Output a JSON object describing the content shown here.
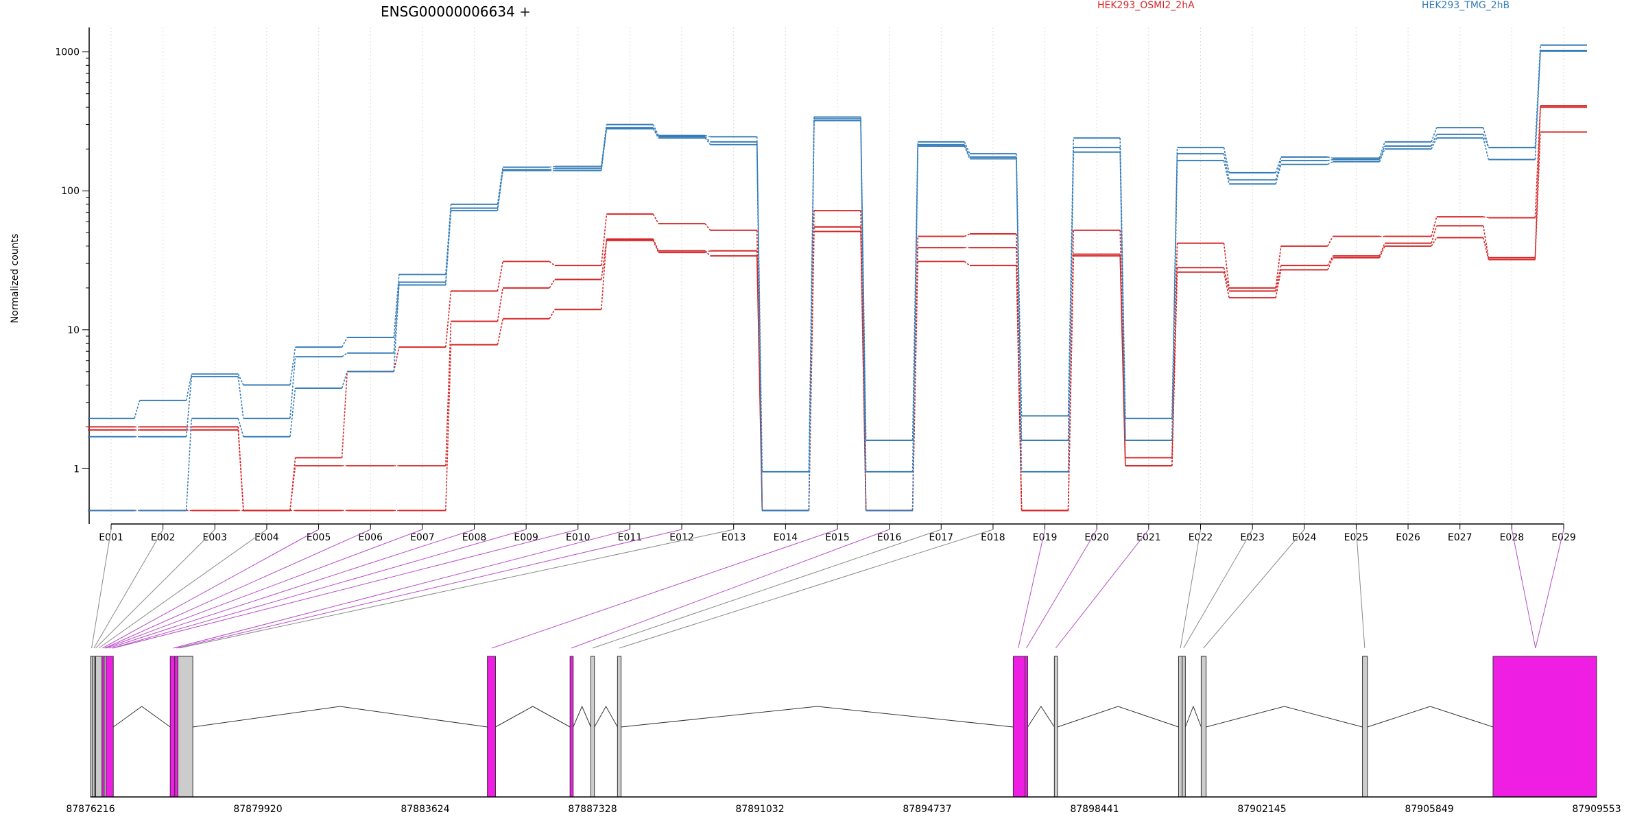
{
  "title": "ENSG00000006634 +",
  "ylabel": "Normalized counts",
  "legend": [
    {
      "name": "HEK293_OSMI2_2hA",
      "color": "#d62728"
    },
    {
      "name": "HEK293_TMG_2hB",
      "color": "#377eb8"
    }
  ],
  "colors": {
    "red_series": "#d62728",
    "blue_series": "#377eb8",
    "highlight_exon": "#ee1fe2",
    "plain_exon": "#cccccc",
    "connector_plain": "#888888",
    "connector_highlight": "#b84cc7"
  },
  "chart_data": {
    "type": "line",
    "scale": "log",
    "ylim": [
      0.4,
      1500
    ],
    "y_ticks": [
      "1",
      "10",
      "100",
      "1000"
    ],
    "grid": "vertical dotted lines at each exon bin",
    "legend_placement": "top",
    "categories": [
      "E001",
      "E002",
      "E003",
      "E004",
      "E005",
      "E006",
      "E007",
      "E008",
      "E009",
      "E010",
      "E011",
      "E012",
      "E013",
      "E014",
      "E015",
      "E016",
      "E017",
      "E018",
      "E019",
      "E020",
      "E021",
      "E022",
      "E023",
      "E024",
      "E025",
      "E026",
      "E027",
      "E028",
      "E029"
    ],
    "series": [
      {
        "name": "HEK293_OSMI2_2hA",
        "color": "#d62728",
        "values": [
          2.0,
          2.0,
          2.0,
          0.5,
          1.2,
          5.0,
          7.5,
          19,
          31,
          29,
          68,
          58,
          52,
          0.5,
          72,
          0.5,
          47,
          49,
          0.5,
          52,
          1.2,
          42,
          20,
          40,
          47,
          47,
          65,
          64,
          410
        ]
      },
      {
        "name": "HEK293_OSMI2_2hA",
        "color": "#d62728",
        "values": [
          1.9,
          1.9,
          1.9,
          0.5,
          1.05,
          1.05,
          1.05,
          11.5,
          20,
          23,
          44,
          36,
          37,
          0.5,
          55,
          0.5,
          39,
          39,
          0.5,
          35,
          1.05,
          28,
          19,
          29,
          34,
          42,
          56,
          33,
          400
        ]
      },
      {
        "name": "HEK293_OSMI2_2hA",
        "color": "#d62728",
        "values": [
          0.5,
          0.5,
          0.5,
          0.5,
          0.5,
          0.5,
          0.5,
          7.8,
          12,
          14,
          45,
          37,
          34,
          0.5,
          51,
          0.5,
          31,
          29,
          0.5,
          34,
          1.05,
          26,
          17,
          27,
          33,
          40,
          46,
          32,
          265
        ]
      },
      {
        "name": "HEK293_TMG_2hB",
        "color": "#377eb8",
        "values": [
          2.3,
          3.1,
          4.8,
          4.0,
          7.5,
          8.8,
          25,
          80,
          148,
          150,
          300,
          250,
          245,
          0.95,
          340,
          1.6,
          225,
          185,
          2.4,
          240,
          2.3,
          205,
          135,
          175,
          172,
          225,
          285,
          205,
          1120
        ]
      },
      {
        "name": "HEK293_TMG_2hB",
        "color": "#377eb8",
        "values": [
          1.7,
          1.7,
          4.6,
          2.3,
          6.4,
          6.8,
          22,
          75,
          142,
          145,
          285,
          245,
          225,
          0.5,
          330,
          0.95,
          215,
          175,
          1.6,
          205,
          1.6,
          185,
          120,
          165,
          168,
          210,
          255,
          205,
          1020
        ]
      },
      {
        "name": "HEK293_TMG_2hB",
        "color": "#377eb8",
        "values": [
          0.5,
          0.5,
          2.3,
          1.7,
          3.8,
          5.0,
          21,
          72,
          140,
          140,
          280,
          240,
          215,
          0.5,
          320,
          0.5,
          210,
          170,
          0.95,
          190,
          1.6,
          165,
          112,
          155,
          162,
          200,
          240,
          168,
          1010
        ]
      }
    ],
    "genomic_axis": {
      "ticks": [
        "87876216",
        "87879920",
        "87883624",
        "87887328",
        "87891032",
        "87894737",
        "87898441",
        "87902145",
        "87905849",
        "87909553"
      ],
      "start": 87876216,
      "end": 87909553
    }
  }
}
